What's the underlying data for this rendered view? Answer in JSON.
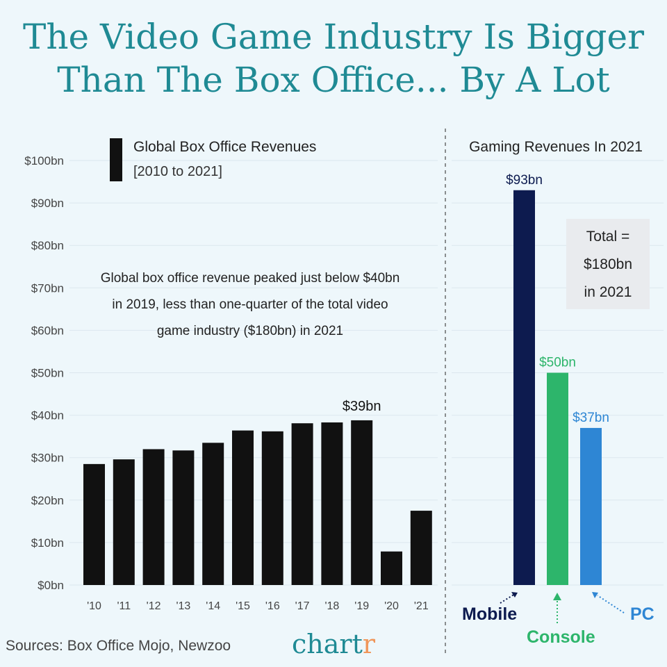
{
  "title": {
    "line1": "The Video Game Industry Is Bigger",
    "line2": "Than The Box Office... By A Lot"
  },
  "colors": {
    "title": "#1f8a94",
    "box_office_bars": "#111111",
    "mobile": "#0d1b4f",
    "console": "#2db56b",
    "pc": "#2e86d4",
    "background": "#eef7fb"
  },
  "chart_data": [
    {
      "type": "bar",
      "title": "Global Box Office Revenues",
      "subtitle": "[2010 to 2021]",
      "categories": [
        "'10",
        "'11",
        "'12",
        "'13",
        "'14",
        "'15",
        "'16",
        "'17",
        "'18",
        "'19",
        "'20",
        "'21"
      ],
      "values": [
        28.5,
        29.6,
        32.0,
        31.7,
        33.5,
        36.4,
        36.2,
        38.1,
        38.3,
        38.8,
        7.9,
        17.5
      ],
      "value_label": {
        "index": 9,
        "text": "$39bn"
      },
      "ylim": [
        0,
        100
      ],
      "yticks": [
        0,
        10,
        20,
        30,
        40,
        50,
        60,
        70,
        80,
        90,
        100
      ],
      "ytick_labels": [
        "$0bn",
        "$10bn",
        "$20bn",
        "$30bn",
        "$40bn",
        "$50bn",
        "$60bn",
        "$70bn",
        "$80bn",
        "$90bn",
        "$100bn"
      ],
      "grid": true,
      "annotation": "Global box office revenue peaked just below $40bn in 2019, less than one-quarter of the total video game industry ($180bn) in 2021"
    },
    {
      "type": "bar",
      "title": "Gaming Revenues In 2021",
      "categories": [
        "Mobile",
        "Console",
        "PC"
      ],
      "values": [
        93,
        50,
        37
      ],
      "value_labels": [
        "$93bn",
        "$50bn",
        "$37bn"
      ],
      "ylim": [
        0,
        100
      ],
      "total_lines": [
        "Total =",
        "$180bn",
        "in 2021"
      ]
    }
  ],
  "footer": {
    "sources": "Sources: Box Office Mojo, Newzoo",
    "logo_main": "chart",
    "logo_end": "r"
  }
}
